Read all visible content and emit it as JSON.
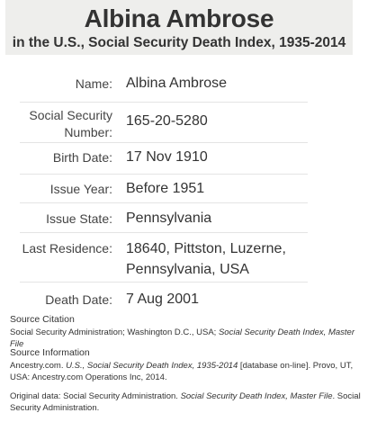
{
  "header": {
    "title": "Albina Ambrose",
    "subtitle": "in the U.S., Social Security Death Index, 1935-2014"
  },
  "record": [
    {
      "label": "Name:",
      "value": "Albina Ambrose"
    },
    {
      "label": "Social Security Number:",
      "value": "165-20-5280"
    },
    {
      "label": "Birth Date:",
      "value": "17 Nov 1910"
    },
    {
      "label": "Issue Year:",
      "value": "Before 1951"
    },
    {
      "label": "Issue State:",
      "value": "Pennsylvania"
    },
    {
      "label": "Last Residence:",
      "value": "18640, Pittston, Luzerne, Pennsylvania, USA"
    },
    {
      "label": "Death Date:",
      "value": "7 Aug 2001"
    }
  ],
  "source_citation": {
    "heading": "Source Citation",
    "text_plain": "Social Security Administration; Washington D.C., USA; ",
    "text_italic": "Social Security Death Index, Master File"
  },
  "source_information": {
    "heading": "Source Information",
    "part1": "Ancestry.com. ",
    "part2_italic": "U.S., Social Security Death Index, 1935-2014",
    "part3": " [database on-line]. Provo, UT, USA: Ancestry.com Operations Inc, 2014."
  },
  "original_data": {
    "part1": "Original data: Social Security Administration. ",
    "part2_italic": "Social Security Death Index, Master File",
    "part3": ". Social Security Administration."
  }
}
